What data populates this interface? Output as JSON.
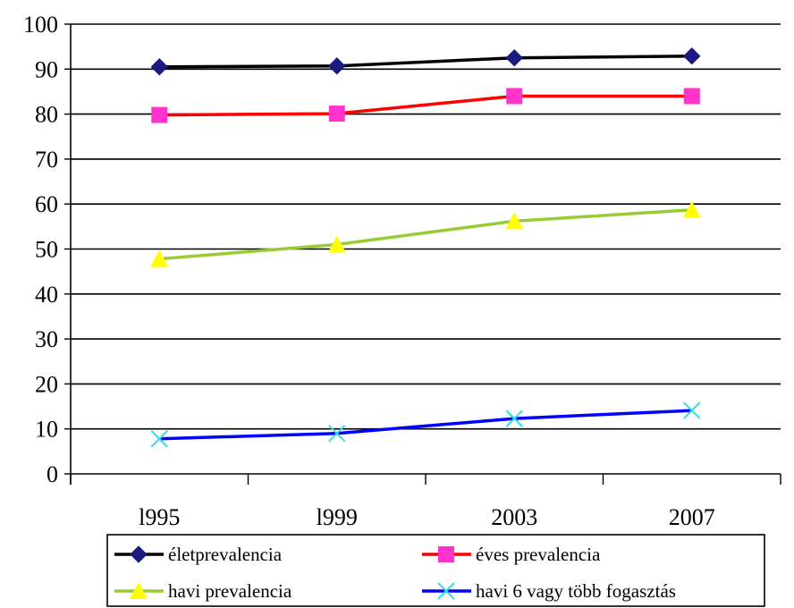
{
  "chart_data": {
    "type": "line",
    "categories": [
      "l995",
      "l999",
      "2003",
      "2007"
    ],
    "ylim": [
      0,
      100
    ],
    "yticks": [
      0,
      10,
      20,
      30,
      40,
      50,
      60,
      70,
      80,
      90,
      100
    ],
    "grid": true,
    "legend_position": "bottom",
    "series": [
      {
        "name": "életprevalencia",
        "values": [
          90.5,
          90.7,
          92.5,
          92.9
        ],
        "color": "#000000",
        "marker": "diamond",
        "marker_color": "#1a1a80"
      },
      {
        "name": "éves prevalencia",
        "values": [
          79.8,
          80.1,
          84.0,
          84.0
        ],
        "color": "#ff0000",
        "marker": "square",
        "marker_color": "#ff33cc"
      },
      {
        "name": "havi prevalencia",
        "values": [
          47.8,
          51.0,
          56.2,
          58.7
        ],
        "color": "#99cc33",
        "marker": "triangle",
        "marker_color": "#ffff00"
      },
      {
        "name": "havi 6 vagy több fogasztás",
        "values": [
          7.8,
          9.0,
          12.3,
          14.1
        ],
        "color": "#0000ff",
        "marker": "x",
        "marker_color": "#33ddee"
      }
    ]
  }
}
